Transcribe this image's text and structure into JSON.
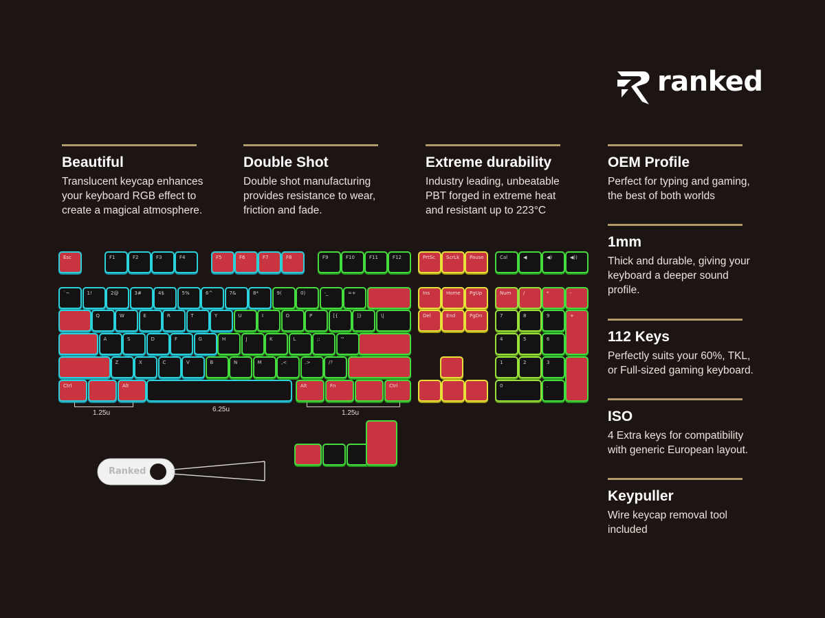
{
  "brand": {
    "name": "ranked"
  },
  "features": [
    {
      "title": "Beautiful",
      "desc": [
        "Translucent keycap enhances",
        "your keyboard RGB effect to",
        "create a magical atmosphere."
      ]
    },
    {
      "title": "Double Shot",
      "desc": [
        "Double shot manufacturing",
        "provides resistance to wear,",
        "friction and fade."
      ]
    },
    {
      "title": "Extreme durability",
      "desc": [
        "Industry leading, unbeatable",
        "PBT forged in extreme heat",
        "and resistant up to 223°C"
      ]
    },
    {
      "title": "OEM Profile",
      "desc": [
        "Perfect for typing and gaming,",
        "the best of both worlds"
      ]
    },
    {
      "title": "1mm",
      "desc": [
        "Thick and durable, giving your",
        "keyboard a deeper sound",
        "profile."
      ]
    },
    {
      "title": "112 Keys",
      "desc": [
        "Perfectly suits your 60%, TKL,",
        "or Full-sized gaming keyboard."
      ]
    },
    {
      "title": "ISO",
      "desc": [
        "4 Extra keys for compatibility",
        "with generic European layout."
      ]
    },
    {
      "title": "Keypuller",
      "desc": [
        "Wire keycap removal tool",
        "included"
      ]
    }
  ],
  "dimensions": {
    "mod_left": "1.25u",
    "space": "6.25u",
    "mod_right": "1.25u"
  },
  "puller_label": "Ranked",
  "colors": {
    "background": "#1d1513",
    "red_cap": "#c93441",
    "black_cap": "#141212",
    "cyan_glow": "#2ad3dc",
    "green_glow": "#45dc3e",
    "yellow_glow": "#e7e23a",
    "divider": "#b39a6a"
  },
  "keys": {
    "fn_row": [
      "Esc",
      "F1",
      "F2",
      "F3",
      "F4",
      "F5",
      "F6",
      "F7",
      "F8",
      "F9",
      "F10",
      "F11",
      "F12",
      "PrtSc",
      "ScrLk",
      "Pause",
      "Cal",
      "◀",
      "◀)",
      "◀))"
    ],
    "num_row": [
      "`~",
      "1!",
      "2@",
      "3#",
      "4$",
      "5%",
      "6^",
      "7&",
      "8*",
      "9(",
      "0)",
      "-_",
      "=+",
      "",
      "Ins",
      "Home",
      "PgUp",
      "Num",
      "/",
      "*",
      "-"
    ],
    "row_q": [
      "",
      "Q",
      "W",
      "E",
      "R",
      "T",
      "Y",
      "U",
      "I",
      "O",
      "P",
      "[{",
      "]}",
      "\\|",
      "Del",
      "End",
      "PgDn",
      "7",
      "8",
      "9",
      "+"
    ],
    "row_a": [
      "",
      "A",
      "S",
      "D",
      "F",
      "G",
      "H",
      "J",
      "K",
      "L",
      ";:",
      "'\"",
      ""
    ],
    "row_z": [
      "",
      "Z",
      "X",
      "C",
      "V",
      "B",
      "N",
      "M",
      ",<",
      ".>",
      "/?",
      ""
    ],
    "row_ctrl": [
      "Ctrl",
      "",
      "Alt",
      "",
      "Alt",
      "Fn",
      "",
      "Ctrl"
    ],
    "numpad_home": "Home",
    "numpad_pgup": "PgUp",
    "numpad_4": "4",
    "numpad_5": "5",
    "numpad_6": "6",
    "numpad_1": "1",
    "numpad_end": "End",
    "numpad_2": "2",
    "numpad_3": "3",
    "numpad_pgdn": "PgDn",
    "numpad_0": "0",
    "numpad_ins": "Ins",
    "numpad_dot": ".",
    "numpad_del": "Del"
  }
}
